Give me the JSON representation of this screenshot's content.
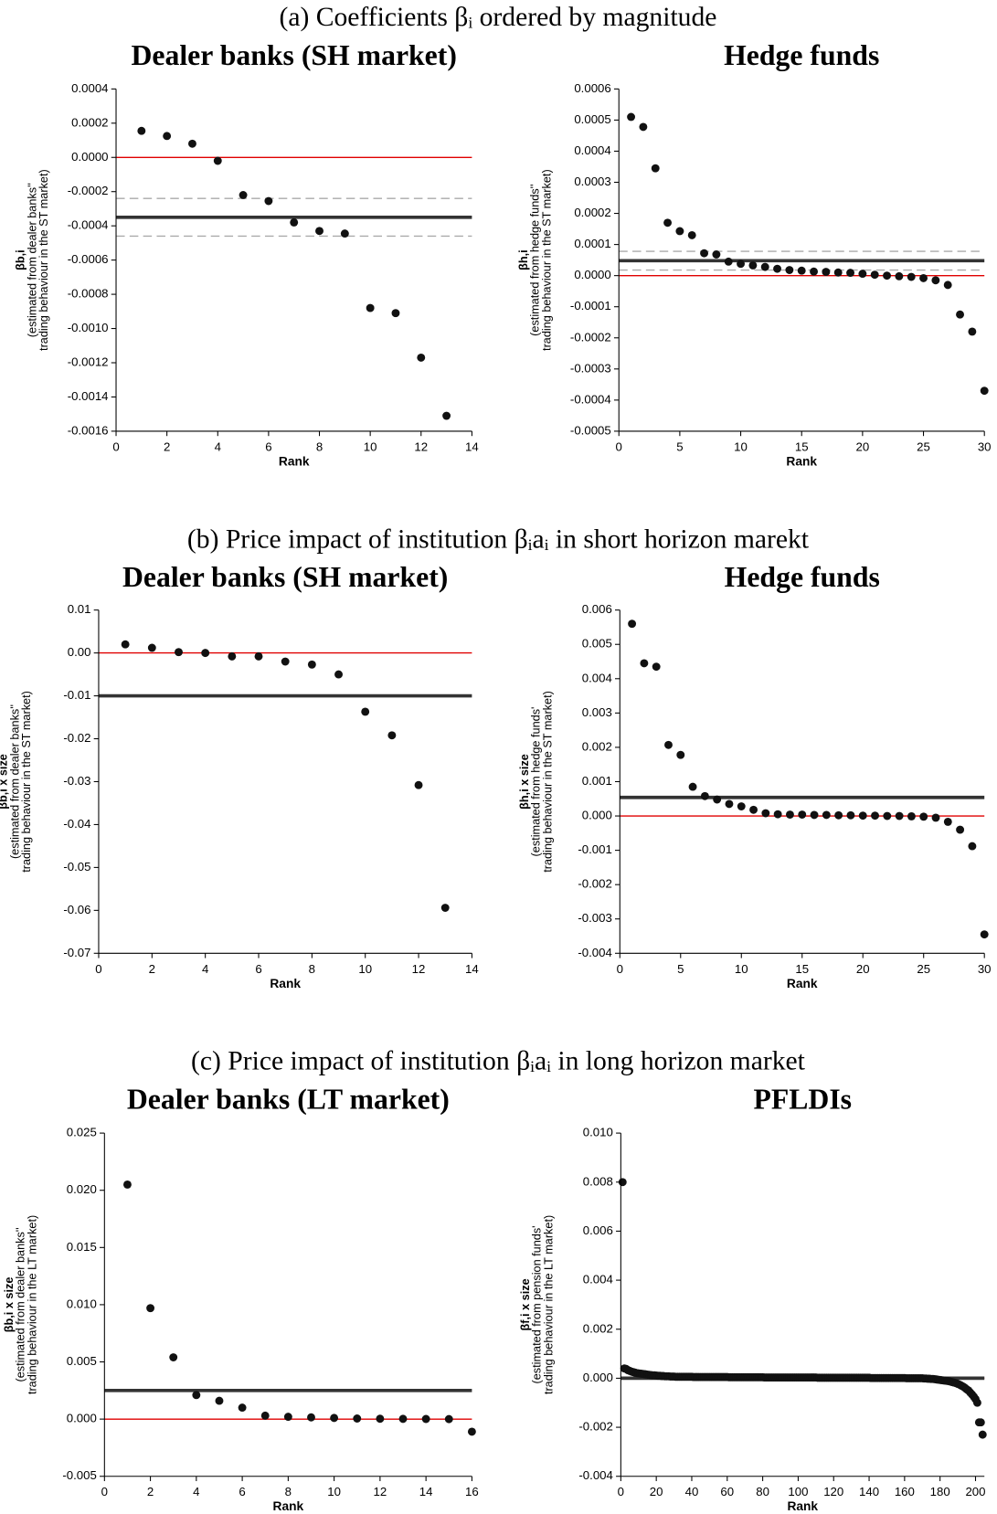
{
  "figure_captions": [
    "(a) Coefficients βᵢ ordered by magnitude",
    "(b) Price impact of institution βᵢaᵢ in short horizon marekt",
    "(c) Price impact of institution βᵢaᵢ in long horizon market"
  ],
  "chart_data": [
    {
      "type": "scatter",
      "title": "Dealer banks (SH market)",
      "xlabel": "Rank",
      "ylabel": [
        "βb,i",
        "(estimated from dealer banks''",
        "trading behaviour in the ST market)"
      ],
      "x": [
        1,
        2,
        3,
        4,
        5,
        6,
        7,
        8,
        9,
        10,
        11,
        12,
        13
      ],
      "y": [
        0.000155,
        0.000125,
        8e-05,
        -2e-05,
        -0.00022,
        -0.000255,
        -0.00038,
        -0.00043,
        -0.000445,
        -0.00088,
        -0.00091,
        -0.00117,
        -0.00151
      ],
      "color": "#111",
      "xlim": [
        0,
        14
      ],
      "xticks": [
        0,
        2,
        4,
        6,
        8,
        10,
        12,
        14
      ],
      "ylim": [
        -0.0016,
        0.0004
      ],
      "yticks": [
        {
          "value": -0.0016,
          "label": "-0.0016"
        },
        {
          "value": -0.0014,
          "label": "-0.0014"
        },
        {
          "value": -0.0012,
          "label": "-0.0012"
        },
        {
          "value": -0.001,
          "label": "-0.0010"
        },
        {
          "value": -0.0008,
          "label": "-0.0008"
        },
        {
          "value": -0.0006,
          "label": "-0.0006"
        },
        {
          "value": -0.0004,
          "label": "-0.0004"
        },
        {
          "value": -0.0002,
          "label": "-0.0002"
        },
        {
          "value": 0,
          "label": "0.0000"
        },
        {
          "value": 0.0002,
          "label": "0.0002"
        },
        {
          "value": 0.0004,
          "label": "0.0004"
        }
      ],
      "hlines": [
        {
          "value": 0,
          "color": "#e00000",
          "dashed": false
        },
        {
          "value": -0.00035,
          "color": "#333",
          "dashed": false
        },
        {
          "value": -0.00024,
          "color": "#aaa",
          "dashed": true
        },
        {
          "value": -0.00046,
          "color": "#aaa",
          "dashed": true
        }
      ]
    },
    {
      "type": "scatter",
      "title": "Hedge funds",
      "xlabel": "Rank",
      "ylabel": [
        "βh,i",
        "(estimated from hedge funds''",
        "trading behaviour in the ST market)"
      ],
      "x": [
        1,
        2,
        3,
        4,
        5,
        6,
        7,
        8,
        9,
        10,
        11,
        12,
        13,
        14,
        15,
        16,
        17,
        18,
        19,
        20,
        21,
        22,
        23,
        24,
        25,
        26,
        27,
        28,
        29,
        30
      ],
      "y": [
        0.00051,
        0.000478,
        0.000345,
        0.00017,
        0.000143,
        0.00013,
        7.2e-05,
        6.8e-05,
        4.5e-05,
        3.8e-05,
        3.3e-05,
        2.8e-05,
        2.2e-05,
        1.8e-05,
        1.6e-05,
        1.3e-05,
        1.2e-05,
        1e-05,
        9e-06,
        6e-06,
        3e-06,
        0,
        -2e-06,
        -4e-06,
        -8e-06,
        -1.5e-05,
        -3e-05,
        -0.000125,
        -0.00018,
        -0.00037
      ],
      "color": "#111",
      "xlim": [
        0,
        30
      ],
      "xticks": [
        0,
        5,
        10,
        15,
        20,
        25,
        30
      ],
      "ylim": [
        -0.0005,
        0.0006
      ],
      "yticks": [
        {
          "value": -0.0005,
          "label": "-0.0005"
        },
        {
          "value": -0.0004,
          "label": "-0.0004"
        },
        {
          "value": -0.0003,
          "label": "-0.0003"
        },
        {
          "value": -0.0002,
          "label": "-0.0002"
        },
        {
          "value": -0.0001,
          "label": "-0.0001"
        },
        {
          "value": 0,
          "label": "0.0000"
        },
        {
          "value": 0.0001,
          "label": "0.0001"
        },
        {
          "value": 0.0002,
          "label": "0.0002"
        },
        {
          "value": 0.0003,
          "label": "0.0003"
        },
        {
          "value": 0.0004,
          "label": "0.0004"
        },
        {
          "value": 0.0005,
          "label": "0.0005"
        },
        {
          "value": 0.0006,
          "label": "0.0006"
        }
      ],
      "hlines": [
        {
          "value": 0,
          "color": "#e00000",
          "dashed": false
        },
        {
          "value": 4.8e-05,
          "color": "#333",
          "dashed": false
        },
        {
          "value": 7.8e-05,
          "color": "#aaa",
          "dashed": true
        },
        {
          "value": 1.8e-05,
          "color": "#aaa",
          "dashed": true
        }
      ]
    },
    {
      "type": "scatter",
      "title": "Dealer banks (SH market)",
      "xlabel": "Rank",
      "ylabel": [
        "βb,i x size",
        "(estimated from dealer banks''",
        "trading behaviour in the ST market)"
      ],
      "x": [
        1,
        2,
        3,
        4,
        5,
        6,
        7,
        8,
        9,
        10,
        11,
        12,
        13
      ],
      "y": [
        0.002,
        0.0012,
        0.0002,
        0,
        -0.0008,
        -0.0008,
        -0.002,
        -0.0027,
        -0.005,
        -0.0137,
        -0.0192,
        -0.0308,
        -0.0594
      ],
      "color": "#111",
      "xlim": [
        0,
        14
      ],
      "xticks": [
        0,
        2,
        4,
        6,
        8,
        10,
        12,
        14
      ],
      "ylim": [
        -0.07,
        0.01
      ],
      "yticks": [
        {
          "value": -0.07,
          "label": "-0.07"
        },
        {
          "value": -0.06,
          "label": "-0.06"
        },
        {
          "value": -0.05,
          "label": "-0.05"
        },
        {
          "value": -0.04,
          "label": "-0.04"
        },
        {
          "value": -0.03,
          "label": "-0.03"
        },
        {
          "value": -0.02,
          "label": "-0.02"
        },
        {
          "value": -0.01,
          "label": "-0.01"
        },
        {
          "value": 0,
          "label": "0.00"
        },
        {
          "value": 0.01,
          "label": "0.01"
        }
      ],
      "hlines": [
        {
          "value": 0,
          "color": "#e00000",
          "dashed": false
        },
        {
          "value": -0.01,
          "color": "#333",
          "dashed": false
        }
      ]
    },
    {
      "type": "scatter",
      "title": "Hedge funds",
      "xlabel": "Rank",
      "ylabel": [
        "βh,i x size",
        "(estimated from hedge funds'",
        "trading behaviour in the ST market)"
      ],
      "x": [
        1,
        2,
        3,
        4,
        5,
        6,
        7,
        8,
        9,
        10,
        11,
        12,
        13,
        14,
        15,
        16,
        17,
        18,
        19,
        20,
        21,
        22,
        23,
        24,
        25,
        26,
        27,
        28,
        29,
        30
      ],
      "y": [
        0.0056,
        0.00445,
        0.00435,
        0.00207,
        0.00178,
        0.00085,
        0.00058,
        0.00048,
        0.00035,
        0.00028,
        0.00018,
        8e-05,
        5e-05,
        4e-05,
        4e-05,
        3e-05,
        3e-05,
        2e-05,
        2e-05,
        1e-05,
        1e-05,
        0,
        0,
        -1e-05,
        -2e-05,
        -5e-05,
        -0.00017,
        -0.0004,
        -0.00088,
        -0.00345
      ],
      "color": "#111",
      "xlim": [
        0,
        30
      ],
      "xticks": [
        0,
        5,
        10,
        15,
        20,
        25,
        30
      ],
      "ylim": [
        -0.004,
        0.006
      ],
      "yticks": [
        {
          "value": -0.004,
          "label": "-0.004"
        },
        {
          "value": -0.003,
          "label": "-0.003"
        },
        {
          "value": -0.002,
          "label": "-0.002"
        },
        {
          "value": -0.001,
          "label": "-0.001"
        },
        {
          "value": 0,
          "label": "0.000"
        },
        {
          "value": 0.001,
          "label": "0.001"
        },
        {
          "value": 0.002,
          "label": "0.002"
        },
        {
          "value": 0.003,
          "label": "0.003"
        },
        {
          "value": 0.004,
          "label": "0.004"
        },
        {
          "value": 0.005,
          "label": "0.005"
        },
        {
          "value": 0.006,
          "label": "0.006"
        }
      ],
      "hlines": [
        {
          "value": 0,
          "color": "#e00000",
          "dashed": false
        },
        {
          "value": 0.00054,
          "color": "#333",
          "dashed": false
        }
      ]
    },
    {
      "type": "scatter",
      "title": "Dealer banks (LT market)",
      "xlabel": "Rank",
      "ylabel": [
        "βb,i x size",
        "(estimated from dealer banks''",
        "trading behaviour in the LT market)"
      ],
      "x": [
        1,
        2,
        3,
        4,
        5,
        6,
        7,
        8,
        9,
        10,
        11,
        12,
        13,
        14,
        15,
        16
      ],
      "y": [
        0.0205,
        0.0097,
        0.0054,
        0.0021,
        0.0016,
        0.001,
        0.0003,
        0.0002,
        0.00015,
        0.0001,
        5e-05,
        3e-05,
        2e-05,
        1e-05,
        0,
        -0.0011
      ],
      "color": "#111",
      "xlim": [
        0,
        16
      ],
      "xticks": [
        0,
        2,
        4,
        6,
        8,
        10,
        12,
        14,
        16
      ],
      "ylim": [
        -0.005,
        0.025
      ],
      "yticks": [
        {
          "value": -0.005,
          "label": "-0.005"
        },
        {
          "value": 0,
          "label": "0.000"
        },
        {
          "value": 0.005,
          "label": "0.005"
        },
        {
          "value": 0.01,
          "label": "0.010"
        },
        {
          "value": 0.015,
          "label": "0.015"
        },
        {
          "value": 0.02,
          "label": "0.020"
        },
        {
          "value": 0.025,
          "label": "0.025"
        }
      ],
      "hlines": [
        {
          "value": 0,
          "color": "#e00000",
          "dashed": false
        },
        {
          "value": 0.0025,
          "color": "#333",
          "dashed": false
        }
      ]
    },
    {
      "type": "scatter",
      "title": "PFLDIs",
      "xlabel": "Rank",
      "ylabel": [
        "βf,i x size",
        "(estimated from pension funds'",
        "trading behaviour in the LT market)"
      ],
      "x": [
        1,
        2,
        3,
        4,
        5,
        6,
        7,
        8,
        9,
        10,
        11,
        12,
        13,
        14,
        15,
        16,
        17,
        18,
        19,
        20,
        21,
        22,
        23,
        24,
        25,
        26,
        27,
        28,
        29,
        30,
        31,
        32,
        33,
        34,
        35,
        36,
        37,
        38,
        39,
        40,
        41,
        42,
        43,
        44,
        45,
        46,
        47,
        48,
        49,
        50,
        51,
        52,
        53,
        54,
        55,
        56,
        57,
        58,
        59,
        60,
        61,
        62,
        63,
        64,
        65,
        66,
        67,
        68,
        69,
        70,
        71,
        72,
        73,
        74,
        75,
        76,
        77,
        78,
        79,
        80,
        81,
        82,
        83,
        84,
        85,
        86,
        87,
        88,
        89,
        90,
        91,
        92,
        93,
        94,
        95,
        96,
        97,
        98,
        99,
        100,
        101,
        102,
        103,
        104,
        105,
        106,
        107,
        108,
        109,
        110,
        111,
        112,
        113,
        114,
        115,
        116,
        117,
        118,
        119,
        120,
        121,
        122,
        123,
        124,
        125,
        126,
        127,
        128,
        129,
        130,
        131,
        132,
        133,
        134,
        135,
        136,
        137,
        138,
        139,
        140,
        141,
        142,
        143,
        144,
        145,
        146,
        147,
        148,
        149,
        150,
        151,
        152,
        153,
        154,
        155,
        156,
        157,
        158,
        159,
        160,
        161,
        162,
        163,
        164,
        165,
        166,
        167,
        168,
        169,
        170,
        171,
        172,
        173,
        174,
        175,
        176,
        177,
        178,
        179,
        180,
        181,
        182,
        183,
        184,
        185,
        186,
        187,
        188,
        189,
        190,
        191,
        192,
        193,
        194,
        195,
        196,
        197,
        198,
        199,
        200,
        201,
        202,
        203,
        204
      ],
      "y": [
        0.008,
        0.0004,
        0.00038,
        0.00033,
        0.0003,
        0.00027,
        0.00025,
        0.00023,
        0.00021,
        0.0002,
        0.00019,
        0.00018,
        0.00017,
        0.00016,
        0.00015,
        0.00014,
        0.00013,
        0.00012,
        0.00012,
        0.00011,
        0.0001,
        0.0001,
        9e-05,
        9e-05,
        8e-05,
        8e-05,
        8e-05,
        7e-05,
        7e-05,
        7e-05,
        6e-05,
        6e-05,
        6e-05,
        6e-05,
        6e-05,
        6e-05,
        6e-05,
        6e-05,
        6e-05,
        6e-05,
        5e-05,
        5e-05,
        5e-05,
        5e-05,
        5e-05,
        5e-05,
        5e-05,
        5e-05,
        5e-05,
        5e-05,
        5e-05,
        5e-05,
        5e-05,
        5e-05,
        5e-05,
        5e-05,
        5e-05,
        5e-05,
        5e-05,
        5e-05,
        4e-05,
        4e-05,
        4e-05,
        4e-05,
        4e-05,
        4e-05,
        4e-05,
        4e-05,
        4e-05,
        4e-05,
        4e-05,
        4e-05,
        4e-05,
        4e-05,
        4e-05,
        4e-05,
        4e-05,
        4e-05,
        4e-05,
        4e-05,
        3e-05,
        3e-05,
        3e-05,
        3e-05,
        3e-05,
        3e-05,
        3e-05,
        3e-05,
        3e-05,
        3e-05,
        3e-05,
        3e-05,
        3e-05,
        3e-05,
        3e-05,
        3e-05,
        3e-05,
        3e-05,
        3e-05,
        3e-05,
        3e-05,
        3e-05,
        3e-05,
        3e-05,
        3e-05,
        3e-05,
        3e-05,
        3e-05,
        3e-05,
        3e-05,
        2e-05,
        2e-05,
        2e-05,
        2e-05,
        2e-05,
        2e-05,
        2e-05,
        2e-05,
        2e-05,
        2e-05,
        2e-05,
        2e-05,
        2e-05,
        2e-05,
        2e-05,
        2e-05,
        2e-05,
        2e-05,
        2e-05,
        2e-05,
        2e-05,
        2e-05,
        2e-05,
        2e-05,
        2e-05,
        2e-05,
        2e-05,
        2e-05,
        2e-05,
        2e-05,
        1e-05,
        1e-05,
        1e-05,
        1e-05,
        1e-05,
        1e-05,
        1e-05,
        1e-05,
        1e-05,
        1e-05,
        1e-05,
        1e-05,
        1e-05,
        1e-05,
        1e-05,
        1e-05,
        1e-05,
        1e-05,
        1e-05,
        1e-05,
        0,
        0,
        0,
        0,
        0,
        0,
        0,
        0,
        0,
        0,
        -1e-05,
        -1e-05,
        -2e-05,
        -2e-05,
        -3e-05,
        -3e-05,
        -4e-05,
        -5e-05,
        -6e-05,
        -7e-05,
        -8e-05,
        -9e-05,
        -0.0001,
        -0.00011,
        -0.00012,
        -0.00014,
        -0.00016,
        -0.00018,
        -0.0002,
        -0.00023,
        -0.00026,
        -0.0003,
        -0.00034,
        -0.00039,
        -0.00045,
        -0.0005,
        -0.00058,
        -0.00066,
        -0.00075,
        -0.00085,
        -0.001,
        -0.0018,
        -0.0018,
        -0.0023
      ],
      "color": "#111",
      "xlim": [
        0,
        205
      ],
      "xticks": [
        0,
        20,
        40,
        60,
        80,
        100,
        120,
        140,
        160,
        180,
        200
      ],
      "ylim": [
        -0.004,
        0.01
      ],
      "yticks": [
        {
          "value": -0.004,
          "label": "-0.004"
        },
        {
          "value": -0.002,
          "label": "-0.002"
        },
        {
          "value": 0,
          "label": "0.000"
        },
        {
          "value": 0.002,
          "label": "0.002"
        },
        {
          "value": 0.004,
          "label": "0.004"
        },
        {
          "value": 0.006,
          "label": "0.006"
        },
        {
          "value": 0.008,
          "label": "0.008"
        },
        {
          "value": 0.01,
          "label": "0.010"
        }
      ],
      "hlines": [
        {
          "value": 0,
          "color": "#e00000",
          "dashed": false
        },
        {
          "value": 0,
          "color": "#333",
          "dashed": false
        }
      ]
    }
  ]
}
